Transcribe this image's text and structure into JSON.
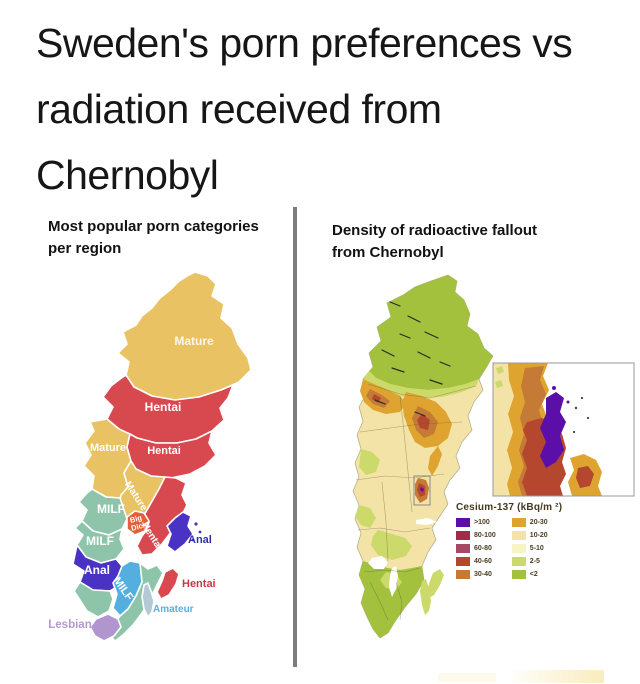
{
  "title_lines": [
    "Sweden's porn preferences vs",
    "radiation received from",
    "Chernobyl"
  ],
  "left_panel": {
    "heading_lines": [
      "Most popular porn categories",
      "per region"
    ],
    "regions": {
      "mature_north": {
        "label": "Mature",
        "color": "#e9c263",
        "label_color": "#fdf6e8"
      },
      "hentai_mid": {
        "label": "Hentai",
        "color": "#d8494f",
        "label_color": "#ffffff"
      },
      "hentai_lower": {
        "label": "Hentai",
        "color": "#d8494f",
        "label_color": "#ffffff"
      },
      "mature_west": {
        "label": "Mature",
        "color": "#e9c263",
        "label_color": "#ffffff"
      },
      "mature_coast": {
        "label": "Mature",
        "color": "#e9c263",
        "label_color": "#ffffff"
      },
      "milf_north": {
        "label": "MILF",
        "color": "#8dc4aa",
        "label_color": "#ffffff"
      },
      "milf_mid": {
        "label": "MILF",
        "color": "#8dc4aa",
        "label_color": "#ffffff"
      },
      "big_dick": {
        "label_line1": "Big",
        "label_line2": "Dick",
        "color": "#e2603a",
        "label_color": "#ffffff"
      },
      "hentai_east": {
        "label": "Hentai",
        "color": "#d8494f",
        "label_color": "#ffffff"
      },
      "anal_stockholm": {
        "label": "Anal",
        "color": "#4a33c4",
        "label_color": "#2f2fae"
      },
      "anal_west": {
        "label": "Anal",
        "color": "#4a33c4",
        "label_color": "#ffffff"
      },
      "milf_south": {
        "label": "MILF",
        "color": "#54aede",
        "label_color": "#ffffff"
      },
      "teal_southeast": {
        "color": "#8dc4aa"
      },
      "teal_southwest": {
        "color": "#8dc4aa"
      },
      "gotland": {
        "label": "Hentai",
        "color": "#d8494f",
        "label_color": "#c43a44"
      },
      "oland": {
        "label": "Amateur",
        "color": "#b3c9d6",
        "label_color": "#58aede"
      },
      "lesbian": {
        "label": "Lesbian",
        "color": "#b195cf",
        "label_color": "#b49ace"
      }
    }
  },
  "right_panel": {
    "heading_lines": [
      "Density of radioactive fallout",
      "from Chernobyl"
    ],
    "legend": {
      "title": "Cesium-137 (kBq/m ²)",
      "entries": [
        {
          "range": ">100",
          "color": "#5c0fa8"
        },
        {
          "range": "80-100",
          "color": "#a02c4c"
        },
        {
          "range": "60-80",
          "color": "#a74964"
        },
        {
          "range": "40-60",
          "color": "#b5472f"
        },
        {
          "range": "30-40",
          "color": "#c57a35"
        },
        {
          "range": "20-30",
          "color": "#dfa42f"
        },
        {
          "range": "10-20",
          "color": "#f4e3a6"
        },
        {
          "range": "5-10",
          "color": "#f9f4c5"
        },
        {
          "range": "2-5",
          "color": "#ccd96b"
        },
        {
          "range": "<2",
          "color": "#a3c13d"
        }
      ]
    }
  }
}
